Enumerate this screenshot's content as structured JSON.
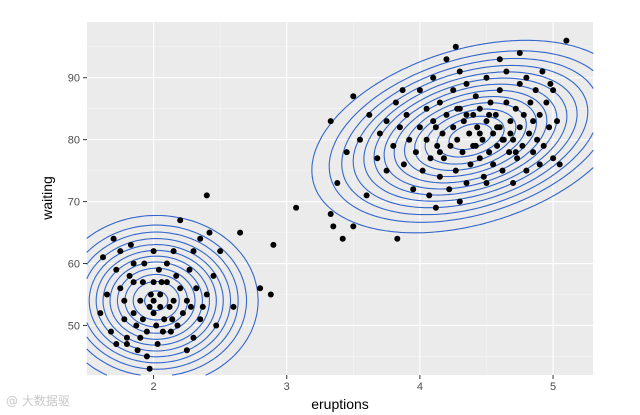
{
  "chart_data": {
    "type": "scatter",
    "subtype": "density_2d_contour",
    "xlabel": "eruptions",
    "ylabel": "waiting",
    "xlim": [
      1.5,
      5.3
    ],
    "ylim": [
      42,
      99
    ],
    "x_ticks": [
      2,
      3,
      4,
      5
    ],
    "y_ticks": [
      50,
      60,
      70,
      80,
      90
    ],
    "grid": true,
    "legend": "none",
    "points": [
      [
        1.6,
        52
      ],
      [
        1.62,
        61
      ],
      [
        1.7,
        64
      ],
      [
        1.72,
        59
      ],
      [
        1.75,
        62
      ],
      [
        1.75,
        56
      ],
      [
        1.78,
        54
      ],
      [
        1.78,
        51
      ],
      [
        1.8,
        48
      ],
      [
        1.8,
        47
      ],
      [
        1.82,
        58
      ],
      [
        1.83,
        63
      ],
      [
        1.85,
        60
      ],
      [
        1.85,
        57
      ],
      [
        1.85,
        52
      ],
      [
        1.87,
        50
      ],
      [
        1.88,
        46
      ],
      [
        1.9,
        48
      ],
      [
        1.9,
        54
      ],
      [
        1.92,
        57
      ],
      [
        1.93,
        60
      ],
      [
        1.95,
        49
      ],
      [
        1.95,
        45
      ],
      [
        1.97,
        53
      ],
      [
        1.98,
        55
      ],
      [
        2.0,
        52
      ],
      [
        2.0,
        54
      ],
      [
        2.0,
        57
      ],
      [
        2.0,
        62
      ],
      [
        2.02,
        50
      ],
      [
        2.03,
        47
      ],
      [
        2.05,
        53
      ],
      [
        2.05,
        55
      ],
      [
        2.07,
        49
      ],
      [
        2.08,
        51
      ],
      [
        2.1,
        57
      ],
      [
        2.1,
        60
      ],
      [
        2.12,
        53
      ],
      [
        2.13,
        49
      ],
      [
        2.15,
        54
      ],
      [
        2.15,
        62
      ],
      [
        2.17,
        58
      ],
      [
        2.18,
        50
      ],
      [
        2.2,
        56
      ],
      [
        2.2,
        67
      ],
      [
        2.22,
        52
      ],
      [
        2.25,
        46
      ],
      [
        2.25,
        54
      ],
      [
        2.27,
        59
      ],
      [
        2.3,
        62
      ],
      [
        2.3,
        48
      ],
      [
        2.32,
        56
      ],
      [
        2.35,
        51
      ],
      [
        2.35,
        64
      ],
      [
        2.37,
        53
      ],
      [
        2.4,
        55
      ],
      [
        2.4,
        71
      ],
      [
        2.42,
        65
      ],
      [
        2.45,
        58
      ],
      [
        2.47,
        50
      ],
      [
        2.5,
        62
      ],
      [
        1.65,
        55
      ],
      [
        1.68,
        49
      ],
      [
        1.72,
        47
      ],
      [
        1.92,
        51
      ],
      [
        2.04,
        59
      ],
      [
        2.06,
        57
      ],
      [
        2.14,
        51
      ],
      [
        2.28,
        53
      ],
      [
        1.97,
        43
      ],
      [
        2.6,
        53
      ],
      [
        2.65,
        65
      ],
      [
        2.8,
        56
      ],
      [
        2.88,
        55
      ],
      [
        2.9,
        63
      ],
      [
        3.07,
        69
      ],
      [
        3.33,
        68
      ],
      [
        3.35,
        66
      ],
      [
        3.38,
        73
      ],
      [
        3.42,
        64
      ],
      [
        3.45,
        78
      ],
      [
        3.5,
        66
      ],
      [
        3.5,
        87
      ],
      [
        3.6,
        71
      ],
      [
        3.62,
        84
      ],
      [
        3.68,
        77
      ],
      [
        3.75,
        83
      ],
      [
        3.83,
        64
      ],
      [
        3.33,
        83
      ],
      [
        3.55,
        80
      ],
      [
        3.7,
        81
      ],
      [
        3.75,
        75
      ],
      [
        3.8,
        79
      ],
      [
        3.82,
        86
      ],
      [
        3.85,
        82
      ],
      [
        3.88,
        76
      ],
      [
        3.9,
        84
      ],
      [
        3.92,
        80
      ],
      [
        3.95,
        72
      ],
      [
        3.97,
        78
      ],
      [
        4.0,
        82
      ],
      [
        4.0,
        88
      ],
      [
        4.02,
        75
      ],
      [
        4.05,
        80
      ],
      [
        4.05,
        85
      ],
      [
        4.07,
        71
      ],
      [
        4.08,
        77
      ],
      [
        4.1,
        83
      ],
      [
        4.1,
        90
      ],
      [
        4.12,
        69
      ],
      [
        4.13,
        79
      ],
      [
        4.15,
        74
      ],
      [
        4.15,
        86
      ],
      [
        4.17,
        81
      ],
      [
        4.18,
        77
      ],
      [
        4.2,
        93
      ],
      [
        4.2,
        84
      ],
      [
        4.22,
        72
      ],
      [
        4.23,
        79
      ],
      [
        4.25,
        82
      ],
      [
        4.25,
        88
      ],
      [
        4.27,
        75
      ],
      [
        4.28,
        80
      ],
      [
        4.3,
        85
      ],
      [
        4.3,
        91
      ],
      [
        4.32,
        78
      ],
      [
        4.33,
        83
      ],
      [
        4.35,
        73
      ],
      [
        4.35,
        89
      ],
      [
        4.37,
        81
      ],
      [
        4.38,
        76
      ],
      [
        4.4,
        84
      ],
      [
        4.4,
        79
      ],
      [
        4.42,
        87
      ],
      [
        4.43,
        82
      ],
      [
        4.45,
        77
      ],
      [
        4.45,
        85
      ],
      [
        4.47,
        80
      ],
      [
        4.48,
        74
      ],
      [
        4.5,
        83
      ],
      [
        4.5,
        90
      ],
      [
        4.52,
        78
      ],
      [
        4.53,
        86
      ],
      [
        4.55,
        81
      ],
      [
        4.55,
        76
      ],
      [
        4.57,
        84
      ],
      [
        4.58,
        79
      ],
      [
        4.6,
        88
      ],
      [
        4.6,
        82
      ],
      [
        4.62,
        75
      ],
      [
        4.63,
        80
      ],
      [
        4.65,
        86
      ],
      [
        4.65,
        91
      ],
      [
        4.67,
        78
      ],
      [
        4.68,
        83
      ],
      [
        4.7,
        73
      ],
      [
        4.7,
        80
      ],
      [
        4.72,
        85
      ],
      [
        4.73,
        77
      ],
      [
        4.75,
        82
      ],
      [
        4.75,
        89
      ],
      [
        4.77,
        79
      ],
      [
        4.78,
        84
      ],
      [
        4.8,
        75
      ],
      [
        4.8,
        90
      ],
      [
        4.82,
        81
      ],
      [
        4.83,
        86
      ],
      [
        4.85,
        78
      ],
      [
        4.85,
        83
      ],
      [
        4.87,
        88
      ],
      [
        4.88,
        80
      ],
      [
        4.9,
        76
      ],
      [
        4.9,
        84
      ],
      [
        4.92,
        91
      ],
      [
        4.93,
        79
      ],
      [
        4.95,
        86
      ],
      [
        4.97,
        82
      ],
      [
        5.0,
        88
      ],
      [
        5.0,
        77
      ],
      [
        5.03,
        83
      ],
      [
        5.05,
        76
      ],
      [
        5.1,
        96
      ],
      [
        4.27,
        95
      ],
      [
        4.6,
        93
      ],
      [
        4.75,
        94
      ],
      [
        3.87,
        88
      ],
      [
        4.3,
        70
      ],
      [
        4.5,
        73
      ],
      [
        4.98,
        89
      ],
      [
        4.15,
        78
      ],
      [
        4.45,
        81
      ],
      [
        4.62,
        80
      ],
      [
        4.58,
        82
      ],
      [
        4.35,
        84
      ],
      [
        4.42,
        79
      ],
      [
        4.52,
        84
      ],
      [
        4.68,
        81
      ],
      [
        4.28,
        85
      ],
      [
        4.12,
        82
      ],
      [
        4.72,
        78
      ]
    ],
    "contours": "2D kernel density estimate contours (blue) with two modes near (2.0, 54) and (4.4, 80)"
  },
  "watermark": "@ 大数据驱"
}
